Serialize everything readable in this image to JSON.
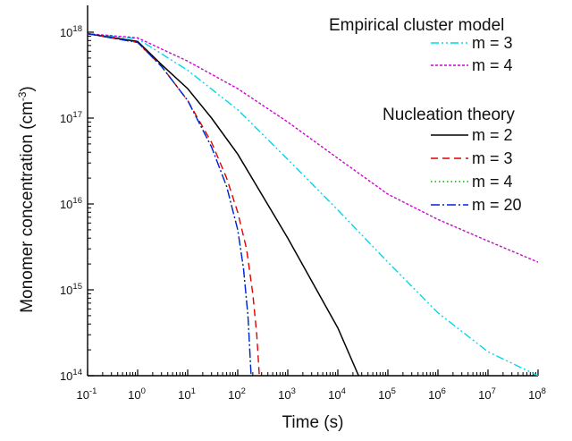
{
  "chart_data": {
    "type": "line",
    "xlabel": "Time (s)",
    "ylabel_main": "Monomer concentration (cm",
    "ylabel_sup": "-3",
    "ylabel_tail": ")",
    "xscale": "log",
    "yscale": "log",
    "xlim": [
      0.1,
      100000000
    ],
    "ylim": [
      100000000000000,
      1000000000000000000
    ],
    "x_ticks": [
      {
        "value": 0.1,
        "base": "10",
        "exp": "-1"
      },
      {
        "value": 1,
        "base": "10",
        "exp": "0"
      },
      {
        "value": 10,
        "base": "10",
        "exp": "1"
      },
      {
        "value": 100,
        "base": "10",
        "exp": "2"
      },
      {
        "value": 1000,
        "base": "10",
        "exp": "3"
      },
      {
        "value": 10000,
        "base": "10",
        "exp": "4"
      },
      {
        "value": 100000,
        "base": "10",
        "exp": "5"
      },
      {
        "value": 1000000,
        "base": "10",
        "exp": "6"
      },
      {
        "value": 10000000,
        "base": "10",
        "exp": "7"
      },
      {
        "value": 100000000,
        "base": "10",
        "exp": "8"
      }
    ],
    "y_ticks": [
      {
        "value": 100000000000000,
        "base": "10",
        "exp": "14"
      },
      {
        "value": 1000000000000000,
        "base": "10",
        "exp": "15"
      },
      {
        "value": 10000000000000000,
        "base": "10",
        "exp": "16"
      },
      {
        "value": 100000000000000000,
        "base": "10",
        "exp": "17"
      },
      {
        "value": 1000000000000000000,
        "base": "10",
        "exp": "18"
      }
    ],
    "legend_groups": [
      {
        "title": "Empirical cluster model",
        "series_indices": [
          0,
          1
        ]
      },
      {
        "title": "Nucleation theory",
        "series_indices": [
          2,
          3,
          4,
          5
        ]
      }
    ],
    "legend_placement": "top-right",
    "series": [
      {
        "name": "m = 3",
        "group": "Empirical cluster model",
        "color": "#00d8e8",
        "dash": "9,3,2,3,2,3",
        "points": [
          [
            0.1,
            9.6e+17
          ],
          [
            1,
            8.4e+17
          ],
          [
            10,
            3.6e+17
          ],
          [
            100,
            1.25e+17
          ],
          [
            1000,
            3.3e+16
          ],
          [
            10000,
            8500000000000000.0
          ],
          [
            100000,
            2100000000000000.0
          ],
          [
            1000000,
            540000000000000.0
          ],
          [
            10000000,
            190000000000000.0
          ],
          [
            100000000,
            100000000000000.0
          ]
        ]
      },
      {
        "name": "m = 4",
        "group": "Empirical cluster model",
        "color": "#d400d4",
        "dash": "3,2",
        "points": [
          [
            0.1,
            9.6e+17
          ],
          [
            1,
            8.6e+17
          ],
          [
            10,
            4.6e+17
          ],
          [
            100,
            2.2e+17
          ],
          [
            1000,
            9e+16
          ],
          [
            10000,
            3.4e+16
          ],
          [
            100000,
            1.3e+16
          ],
          [
            1000000,
            6600000000000000.0
          ],
          [
            10000000,
            3700000000000000.0
          ],
          [
            100000000,
            2100000000000000.0
          ]
        ]
      },
      {
        "name": "m = 2",
        "group": "Nucleation theory",
        "color": "#000000",
        "dash": "",
        "points": [
          [
            0.1,
            9.6e+17
          ],
          [
            1,
            7.8e+17
          ],
          [
            3,
            4.2e+17
          ],
          [
            10,
            2.2e+17
          ],
          [
            30,
            1e+17
          ],
          [
            100,
            3.8e+16
          ],
          [
            1000,
            4000000000000000.0
          ],
          [
            10000,
            360000000000000.0
          ],
          [
            26000,
            100000000000000.0
          ]
        ]
      },
      {
        "name": "m = 3",
        "group": "Nucleation theory",
        "color": "#e00000",
        "dash": "8,5",
        "points": [
          [
            0.1,
            9.6e+17
          ],
          [
            1,
            7.6e+17
          ],
          [
            3,
            4e+17
          ],
          [
            10,
            1.6e+17
          ],
          [
            30,
            5.2e+16
          ],
          [
            60,
            2e+16
          ],
          [
            100,
            8000000000000000.0
          ],
          [
            150,
            3000000000000000.0
          ],
          [
            200,
            900000000000000.0
          ],
          [
            240,
            300000000000000.0
          ],
          [
            270,
            100000000000000.0
          ]
        ]
      },
      {
        "name": "m = 4",
        "group": "Nucleation theory",
        "color": "#00b000",
        "dash": "1.5,3",
        "points": [
          [
            0.1,
            9.6e+17
          ],
          [
            1,
            7.6e+17
          ],
          [
            3,
            4e+17
          ],
          [
            10,
            1.6e+17
          ],
          [
            30,
            4.6e+16
          ],
          [
            60,
            1.6e+16
          ],
          [
            100,
            5000000000000000.0
          ],
          [
            130,
            1800000000000000.0
          ],
          [
            160,
            500000000000000.0
          ],
          [
            185,
            100000000000000.0
          ]
        ]
      },
      {
        "name": "m = 20",
        "group": "Nucleation theory",
        "color": "#0020d8",
        "dash": "10,3,2,3",
        "points": [
          [
            0.1,
            9.6e+17
          ],
          [
            1,
            7.6e+17
          ],
          [
            3,
            4e+17
          ],
          [
            10,
            1.6e+17
          ],
          [
            30,
            4.6e+16
          ],
          [
            60,
            1.6e+16
          ],
          [
            100,
            5000000000000000.0
          ],
          [
            130,
            1800000000000000.0
          ],
          [
            160,
            500000000000000.0
          ],
          [
            185,
            100000000000000.0
          ]
        ]
      }
    ]
  }
}
